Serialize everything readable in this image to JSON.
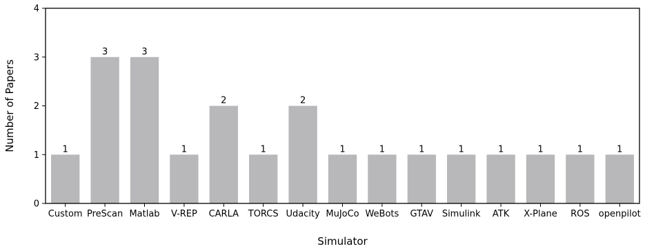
{
  "chart_data": {
    "type": "bar",
    "categories": [
      "Custom",
      "PreScan",
      "Matlab",
      "V-REP",
      "CARLA",
      "TORCS",
      "Udacity",
      "MuJoCo",
      "WeBots",
      "GTAV",
      "Simulink",
      "ATK",
      "X-Plane",
      "ROS",
      "openpilot"
    ],
    "values": [
      1,
      3,
      3,
      1,
      2,
      1,
      2,
      1,
      1,
      1,
      1,
      1,
      1,
      1,
      1
    ],
    "xlabel": "Simulator",
    "ylabel": "Number of Papers",
    "ylim": [
      0,
      4
    ],
    "yticks": [
      0,
      1,
      2,
      3,
      4
    ],
    "grid": false,
    "bar_color": "#b8b8ba",
    "show_value_labels": true
  }
}
